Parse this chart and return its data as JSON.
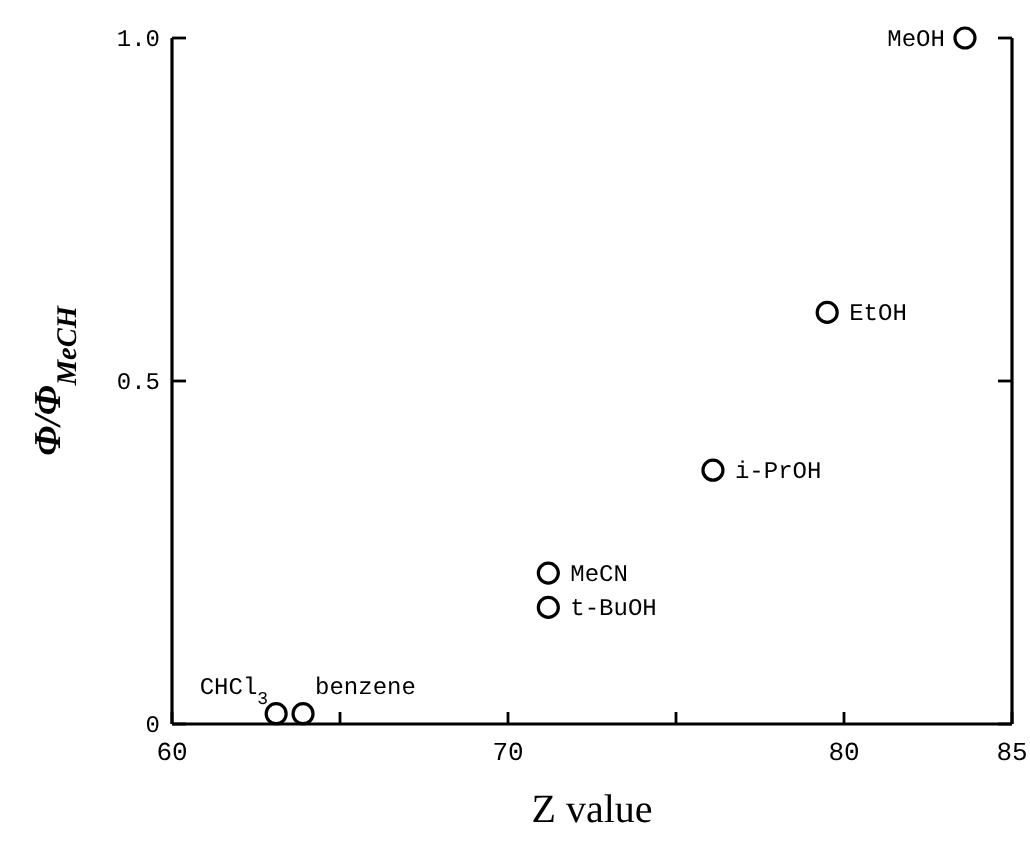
{
  "chart_data": {
    "type": "scatter",
    "xlabel": "Z value",
    "ylabel": "Φ/Φ$_{MeCH}$",
    "marker": "circle",
    "grid": false,
    "xlim": [
      60,
      85
    ],
    "xticks": [
      60,
      {
        "value": 65,
        "label": null
      },
      70,
      {
        "value": 75,
        "label": null
      },
      80,
      85
    ],
    "ylim": [
      0,
      1
    ],
    "yticks": [
      0,
      {
        "value": 0.5,
        "label": "0.5"
      },
      {
        "value": 1,
        "label": "1.0"
      }
    ],
    "series": [
      {
        "color": "#000000",
        "x": [
          63.1,
          63.9,
          71.2,
          71.2,
          76.1,
          79.5,
          83.6
        ],
        "values": [
          0.015,
          0.015,
          0.17,
          0.22,
          0.37,
          0.6,
          1.0
        ]
      }
    ],
    "annotations": [
      {
        "text": "CHCl$_{3}$",
        "x": 63.1,
        "y": 0.015
      },
      {
        "text": "benzene",
        "x": 63.9,
        "y": 0.015
      },
      {
        "text": "t-BuOH",
        "x": 71.2,
        "y": 0.17
      },
      {
        "text": "MeCN",
        "x": 71.2,
        "y": 0.22
      },
      {
        "text": "i-PrOH",
        "x": 76.1,
        "y": 0.37
      },
      {
        "text": "EtOH",
        "x": 79.5,
        "y": 0.6
      },
      {
        "text": "MeOH",
        "x": 83.6,
        "y": 1.0
      }
    ]
  }
}
